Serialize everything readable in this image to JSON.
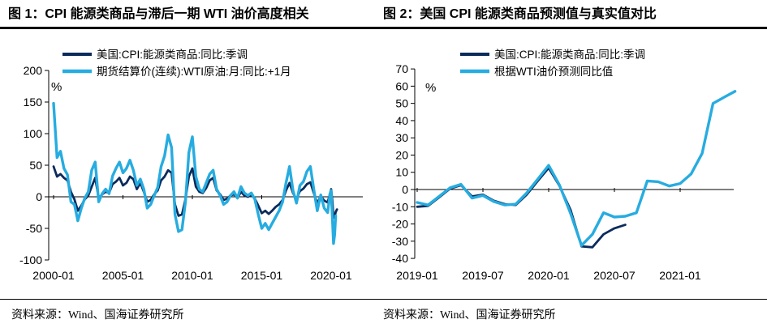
{
  "colors": {
    "dark": "#0b2b5c",
    "light": "#27ace0",
    "axis": "#000000",
    "rule": "#000000"
  },
  "figure1": {
    "title": "图 1：CPI 能源类商品与滞后一期 WTI 油价高度相关",
    "source": "资料来源：Wind、国海证券研究所"
  },
  "figure2": {
    "title": "图 2：美国 CPI 能源类商品预测值与真实值对比",
    "source": "资料来源：Wind、国海证券研究所"
  },
  "chart_data": [
    {
      "type": "line",
      "title": "图 1：CPI 能源类商品与滞后一期 WTI 油价高度相关",
      "xlabel": "",
      "ylabel": "%",
      "ylim": [
        -100,
        200
      ],
      "yticks": [
        200,
        150,
        100,
        50,
        0,
        -50,
        -100
      ],
      "xlim": [
        2000.0,
        2022.3
      ],
      "xtick_labels": [
        "2000-01",
        "2005-01",
        "2010-01",
        "2015-01",
        "2020-01"
      ],
      "xtick_positions": [
        2000,
        2005,
        2010,
        2015,
        2020
      ],
      "grid": false,
      "legend_position": "top",
      "series": [
        {
          "name": "美国:CPI:能源类商品:同比:季调",
          "color": "dark",
          "x": [
            2000,
            2000.25,
            2000.5,
            2000.75,
            2001,
            2001.25,
            2001.5,
            2001.75,
            2002,
            2002.25,
            2002.5,
            2002.75,
            2003,
            2003.25,
            2003.5,
            2003.75,
            2004,
            2004.25,
            2004.5,
            2004.75,
            2005,
            2005.25,
            2005.5,
            2005.75,
            2006,
            2006.25,
            2006.5,
            2006.75,
            2007,
            2007.25,
            2007.5,
            2007.75,
            2008,
            2008.25,
            2008.5,
            2008.75,
            2009,
            2009.25,
            2009.5,
            2009.75,
            2010,
            2010.25,
            2010.5,
            2010.75,
            2011,
            2011.25,
            2011.5,
            2011.75,
            2012,
            2012.25,
            2012.5,
            2012.75,
            2013,
            2013.25,
            2013.5,
            2013.75,
            2014,
            2014.25,
            2014.5,
            2014.75,
            2015,
            2015.25,
            2015.5,
            2015.75,
            2016,
            2016.25,
            2016.5,
            2016.75,
            2017,
            2017.25,
            2017.5,
            2017.75,
            2018,
            2018.25,
            2018.5,
            2018.75,
            2019,
            2019.25,
            2019.5,
            2019.75,
            2019.92,
            2020,
            2020.08,
            2020.17,
            2020.25,
            2020.33,
            2020.42
          ],
          "y": [
            48,
            32,
            36,
            30,
            26,
            8,
            -4,
            -22,
            -14,
            -4,
            2,
            16,
            30,
            -2,
            4,
            8,
            6,
            20,
            24,
            30,
            18,
            22,
            32,
            28,
            12,
            22,
            8,
            -8,
            -5,
            4,
            10,
            26,
            32,
            42,
            38,
            -12,
            -30,
            -28,
            -4,
            32,
            45,
            16,
            8,
            6,
            14,
            26,
            30,
            10,
            4,
            -5,
            -3,
            2,
            4,
            -2,
            8,
            2,
            0,
            3,
            -3,
            -14,
            -26,
            -22,
            -27,
            -22,
            -16,
            -12,
            -5,
            10,
            22,
            6,
            -4,
            9,
            13,
            20,
            23,
            6,
            -10,
            1,
            -6,
            -9,
            5,
            12,
            -5,
            -33,
            -33,
            -24,
            -20
          ]
        },
        {
          "name": "期货结算价(连续):WTI原油:月:同比:+1月",
          "color": "light",
          "x": [
            2000,
            2000.25,
            2000.5,
            2000.75,
            2001,
            2001.25,
            2001.5,
            2001.75,
            2002,
            2002.25,
            2002.5,
            2002.75,
            2003,
            2003.25,
            2003.5,
            2003.75,
            2004,
            2004.25,
            2004.5,
            2004.75,
            2005,
            2005.25,
            2005.5,
            2005.75,
            2006,
            2006.25,
            2006.5,
            2006.75,
            2007,
            2007.25,
            2007.5,
            2007.75,
            2008,
            2008.25,
            2008.5,
            2008.75,
            2009,
            2009.25,
            2009.5,
            2009.75,
            2010,
            2010.25,
            2010.5,
            2010.75,
            2011,
            2011.25,
            2011.5,
            2011.75,
            2012,
            2012.25,
            2012.5,
            2012.75,
            2013,
            2013.25,
            2013.5,
            2013.75,
            2014,
            2014.25,
            2014.5,
            2014.75,
            2015,
            2015.25,
            2015.5,
            2015.75,
            2016,
            2016.25,
            2016.5,
            2016.75,
            2017,
            2017.25,
            2017.5,
            2017.75,
            2018,
            2018.25,
            2018.5,
            2018.75,
            2019,
            2019.25,
            2019.5,
            2019.75,
            2019.92,
            2020,
            2020.08,
            2020.17,
            2020.25,
            2020.33
          ],
          "y": [
            148,
            62,
            72,
            45,
            35,
            -8,
            -12,
            -38,
            -18,
            -2,
            8,
            42,
            55,
            -8,
            5,
            12,
            5,
            33,
            45,
            55,
            38,
            45,
            58,
            42,
            18,
            28,
            12,
            -18,
            -12,
            2,
            15,
            48,
            65,
            98,
            78,
            -28,
            -55,
            -52,
            -8,
            70,
            95,
            32,
            12,
            8,
            22,
            36,
            42,
            12,
            2,
            -12,
            -8,
            2,
            8,
            -2,
            16,
            6,
            2,
            6,
            -4,
            -28,
            -50,
            -42,
            -52,
            -42,
            -32,
            -22,
            -8,
            22,
            48,
            10,
            -10,
            18,
            24,
            40,
            48,
            12,
            -22,
            3,
            -18,
            -25,
            5,
            10,
            -30,
            -74,
            -60,
            -30
          ]
        }
      ]
    },
    {
      "type": "line",
      "title": "图 2：美国 CPI 能源类商品预测值与真实值对比",
      "xlabel": "",
      "ylabel": "%",
      "ylim": [
        -40,
        70
      ],
      "yticks": [
        70,
        60,
        50,
        40,
        30,
        20,
        10,
        0,
        -10,
        -20,
        -30,
        -40
      ],
      "xlim": [
        2019.0,
        2021.5
      ],
      "xtick_labels": [
        "2019-01",
        "2019-07",
        "2020-01",
        "2020-07",
        "2021-01"
      ],
      "xtick_positions": [
        2019,
        2019.5,
        2020,
        2020.5,
        2021
      ],
      "grid": false,
      "legend_position": "top",
      "series": [
        {
          "name": "美国:CPI:能源类商品:同比:季调",
          "color": "dark",
          "x": [
            2019,
            2019.083,
            2019.167,
            2019.25,
            2019.333,
            2019.417,
            2019.5,
            2019.583,
            2019.667,
            2019.75,
            2019.833,
            2019.917,
            2020,
            2020.083,
            2020.167,
            2020.25,
            2020.333,
            2020.417,
            2020.5,
            2020.583
          ],
          "y": [
            -10,
            -9.5,
            -4.5,
            0.5,
            2.5,
            -4,
            -3,
            -6.5,
            -8.5,
            -9,
            -3,
            5,
            12.5,
            2,
            -12,
            -33,
            -33.5,
            -26,
            -22.5,
            -20.5
          ]
        },
        {
          "name": "根据WTI油价预测同比值",
          "color": "light",
          "x": [
            2019,
            2019.083,
            2019.167,
            2019.25,
            2019.333,
            2019.417,
            2019.5,
            2019.583,
            2019.667,
            2019.75,
            2019.833,
            2019.917,
            2020,
            2020.083,
            2020.167,
            2020.25,
            2020.333,
            2020.417,
            2020.5,
            2020.583,
            2020.667,
            2020.75,
            2020.833,
            2020.917,
            2021,
            2021.083,
            2021.167,
            2021.25,
            2021.333,
            2021.417
          ],
          "y": [
            -7.5,
            -9,
            -4,
            1,
            3,
            -5,
            -3.5,
            -7,
            -9,
            -8.5,
            -2,
            6,
            14,
            2.5,
            -14,
            -32.5,
            -26,
            -13.5,
            -16,
            -15.5,
            -13.5,
            5,
            4.5,
            2,
            3.5,
            9,
            21,
            50,
            53.5,
            57
          ]
        }
      ]
    }
  ]
}
